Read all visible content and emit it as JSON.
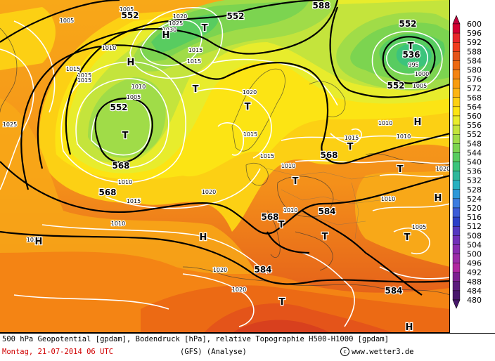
{
  "footer": {
    "description": "500 hPa Geopotential [gpdam], Bodendruck [hPa], relative Topographie H500-H1000 [gpdam]",
    "date": "Montag, 21-07-2014  06 UTC",
    "model": "(GFS)   (Analyse)",
    "copyright": "www.wetter3.de",
    "copyright_icon": "copyright-icon"
  },
  "legend": {
    "values": [
      "600",
      "596",
      "592",
      "588",
      "584",
      "580",
      "576",
      "572",
      "568",
      "564",
      "560",
      "556",
      "552",
      "548",
      "544",
      "540",
      "536",
      "532",
      "528",
      "524",
      "520",
      "516",
      "512",
      "508",
      "504",
      "500",
      "496",
      "492",
      "488",
      "484",
      "480"
    ],
    "colors": [
      "#c0003c",
      "#d40032",
      "#e8262a",
      "#f03c1e",
      "#e4541a",
      "#ec6a14",
      "#f48414",
      "#f89c10",
      "#fcb414",
      "#fcd014",
      "#fce414",
      "#e8ec2c",
      "#c4e43c",
      "#a0dc48",
      "#7cd450",
      "#58cc60",
      "#3cc47c",
      "#30b89c",
      "#28b0c0",
      "#2c98d8",
      "#3c7ce0",
      "#3c5cd8",
      "#2c40c8",
      "#5438c0",
      "#7030b8",
      "#882cb0",
      "#9c2ca8",
      "#b028a0",
      "#7c2090",
      "#5c1c7c",
      "#48186c"
    ]
  },
  "map": {
    "geopotential_labels": [
      "552",
      "552",
      "588",
      "552",
      "536",
      "552",
      "552",
      "568",
      "568",
      "568",
      "584",
      "568",
      "584",
      "584"
    ],
    "pressure_labels": [
      "1005",
      "1005",
      "1020",
      "1025",
      "1030",
      "1015",
      "1010",
      "1015",
      "1015",
      "1005",
      "1020",
      "1010",
      "1025",
      "1010",
      "1010",
      "1015",
      "1010",
      "1010",
      "1020",
      "1015",
      "1010",
      "1020",
      "1020",
      "1005",
      "1010",
      "1010",
      "1015",
      "995",
      "1000",
      "1005",
      "1015",
      "1015",
      "1015",
      "1020",
      "1025"
    ],
    "pressure_systems": [
      "T",
      "T",
      "T",
      "T",
      "T",
      "T",
      "T",
      "T",
      "T",
      "T",
      "T",
      "T",
      "H",
      "H",
      "H",
      "H",
      "H",
      "H",
      "H"
    ]
  }
}
